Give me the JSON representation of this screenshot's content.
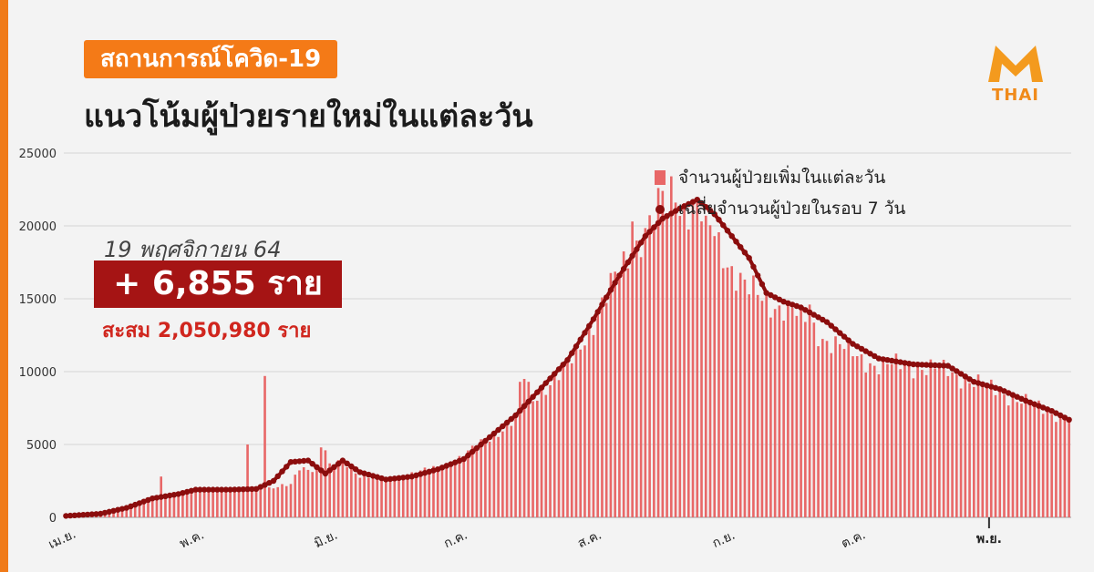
{
  "header": {
    "tag": "สถานการณ์โควิด-19",
    "headline": "แนวโน้มผู้ป่วยรายใหม่ในแต่ละวัน",
    "logo_text": "THAI"
  },
  "summary": {
    "date": "19 พฤศจิกายน 64",
    "new_cases": "+ 6,855 ราย",
    "cumulative": "สะสม 2,050,980 ราย"
  },
  "colors": {
    "accent": "#f47a17",
    "bar": "#e86767",
    "line": "#8b0d0d",
    "box": "#a51414",
    "cumulative_text": "#d0261e"
  },
  "chart_data": {
    "type": "bar",
    "title": "",
    "xlabel": "",
    "ylabel": "",
    "ylim": [
      0,
      25000
    ],
    "yticks": [
      "0",
      "5000",
      "10000",
      "15000",
      "20000",
      "25000"
    ],
    "month_labels": [
      "เม.ย.",
      "พ.ค.",
      "มิ.ย.",
      "ก.ค.",
      "ส.ค.",
      "ก.ย.",
      "ต.ค.",
      "พ.ย."
    ],
    "month_start_day": [
      0,
      30,
      61,
      91,
      122,
      153,
      183,
      214
    ],
    "legend_position": "top-right",
    "day_count": 233,
    "series": [
      {
        "name": "จำนวนผู้ป่วยเพิ่มในแต่ละวัน",
        "kind": "bar",
        "keypoints": [
          [
            0,
            100
          ],
          [
            8,
            300
          ],
          [
            14,
            700
          ],
          [
            20,
            1300
          ],
          [
            26,
            1500
          ],
          [
            30,
            1900
          ],
          [
            38,
            1900
          ],
          [
            44,
            1900
          ],
          [
            52,
            2200
          ],
          [
            54,
            3400
          ],
          [
            60,
            3300
          ],
          [
            64,
            3900
          ],
          [
            68,
            2900
          ],
          [
            74,
            2600
          ],
          [
            80,
            3000
          ],
          [
            86,
            3400
          ],
          [
            92,
            4200
          ],
          [
            98,
            5500
          ],
          [
            104,
            6700
          ],
          [
            110,
            8800
          ],
          [
            116,
            10200
          ],
          [
            122,
            13500
          ],
          [
            128,
            16800
          ],
          [
            134,
            19800
          ],
          [
            138,
            21000
          ],
          [
            142,
            21500
          ],
          [
            146,
            21200
          ],
          [
            150,
            19200
          ],
          [
            154,
            17200
          ],
          [
            158,
            15500
          ],
          [
            162,
            14800
          ],
          [
            166,
            14500
          ],
          [
            170,
            13700
          ],
          [
            176,
            12200
          ],
          [
            182,
            11200
          ],
          [
            188,
            10400
          ],
          [
            196,
            10400
          ],
          [
            204,
            10000
          ],
          [
            210,
            9300
          ],
          [
            216,
            8600
          ],
          [
            222,
            7900
          ],
          [
            228,
            7200
          ],
          [
            232,
            6855
          ]
        ],
        "spikes": [
          [
            22,
            2800
          ],
          [
            42,
            5000
          ],
          [
            46,
            9700
          ],
          [
            59,
            4800
          ],
          [
            60,
            4600
          ],
          [
            105,
            9300
          ],
          [
            106,
            9500
          ],
          [
            107,
            9300
          ],
          [
            131,
            20300
          ],
          [
            137,
            22600
          ],
          [
            138,
            22400
          ],
          [
            140,
            23400
          ],
          [
            141,
            21600
          ],
          [
            148,
            20700
          ],
          [
            150,
            19300
          ],
          [
            170,
            14600
          ],
          [
            172,
            14600
          ]
        ]
      },
      {
        "name": "เฉลี่ยจำนวนผู้ป่วยในรอบ 7 วัน",
        "kind": "line",
        "keypoints": [
          [
            0,
            100
          ],
          [
            8,
            250
          ],
          [
            14,
            650
          ],
          [
            20,
            1300
          ],
          [
            26,
            1600
          ],
          [
            30,
            1900
          ],
          [
            38,
            1900
          ],
          [
            44,
            1950
          ],
          [
            48,
            2500
          ],
          [
            52,
            3800
          ],
          [
            56,
            3900
          ],
          [
            60,
            3000
          ],
          [
            64,
            3900
          ],
          [
            68,
            3100
          ],
          [
            74,
            2600
          ],
          [
            80,
            2800
          ],
          [
            86,
            3300
          ],
          [
            92,
            4000
          ],
          [
            98,
            5500
          ],
          [
            104,
            7000
          ],
          [
            110,
            8900
          ],
          [
            116,
            10800
          ],
          [
            122,
            13600
          ],
          [
            128,
            16600
          ],
          [
            134,
            19300
          ],
          [
            138,
            20500
          ],
          [
            142,
            21200
          ],
          [
            146,
            21800
          ],
          [
            150,
            20800
          ],
          [
            154,
            19300
          ],
          [
            158,
            17800
          ],
          [
            162,
            15400
          ],
          [
            166,
            14800
          ],
          [
            170,
            14400
          ],
          [
            176,
            13400
          ],
          [
            182,
            11900
          ],
          [
            188,
            10900
          ],
          [
            196,
            10500
          ],
          [
            204,
            10400
          ],
          [
            210,
            9300
          ],
          [
            216,
            8800
          ],
          [
            222,
            8000
          ],
          [
            228,
            7300
          ],
          [
            232,
            6700
          ]
        ]
      }
    ]
  }
}
